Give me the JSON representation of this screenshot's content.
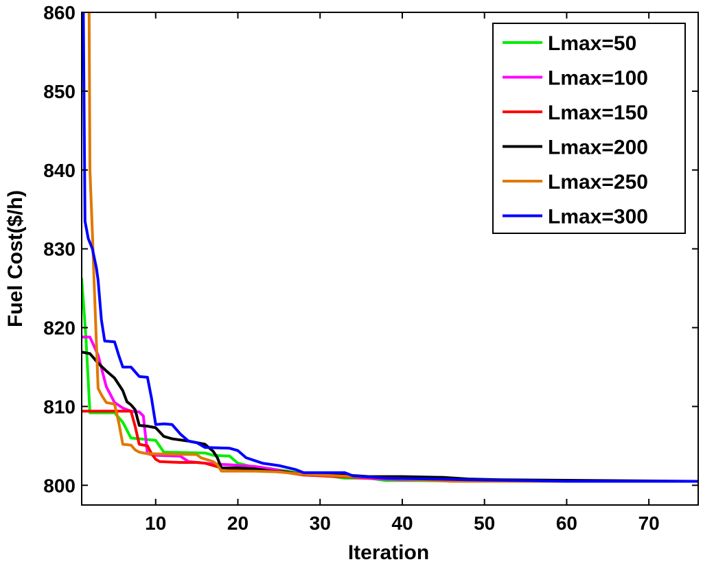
{
  "chart_data": {
    "type": "line",
    "title": "",
    "xlabel": "Iteration",
    "ylabel": "Fuel Cost($/h)",
    "xlim": [
      1,
      76
    ],
    "ylim": [
      797.5,
      860
    ],
    "x_ticks": [
      10,
      20,
      30,
      40,
      50,
      60,
      70
    ],
    "y_ticks": [
      800,
      810,
      820,
      830,
      840,
      850,
      860
    ],
    "grid": false,
    "legend_position": "top-right",
    "series": [
      {
        "name": "Lmax=50",
        "color": "#00ee00",
        "points": [
          [
            1,
            826.2
          ],
          [
            1.5,
            819
          ],
          [
            2,
            809.2
          ],
          [
            5,
            809.2
          ],
          [
            6,
            808
          ],
          [
            7,
            806
          ],
          [
            8,
            805.9
          ],
          [
            9,
            805.8
          ],
          [
            10,
            805.7
          ],
          [
            11,
            804.2
          ],
          [
            16,
            804.1
          ],
          [
            17,
            803.8
          ],
          [
            19,
            803.7
          ],
          [
            20,
            802.8
          ],
          [
            22,
            802.3
          ],
          [
            24,
            802.1
          ],
          [
            26,
            801.8
          ],
          [
            28,
            801.4
          ],
          [
            31,
            801.2
          ],
          [
            33,
            800.9
          ],
          [
            36,
            800.9
          ],
          [
            38,
            800.6
          ],
          [
            42,
            800.6
          ],
          [
            50,
            800.5
          ],
          [
            76,
            800.5
          ]
        ]
      },
      {
        "name": "Lmax=100",
        "color": "#ff00ff",
        "points": [
          [
            1,
            818.8
          ],
          [
            2,
            818.8
          ],
          [
            3,
            816.5
          ],
          [
            4,
            812.5
          ],
          [
            5,
            810.5
          ],
          [
            6,
            809.8
          ],
          [
            7,
            809.4
          ],
          [
            8,
            809.3
          ],
          [
            8.5,
            808.8
          ],
          [
            9,
            804
          ],
          [
            10,
            803.8
          ],
          [
            13,
            803.7
          ],
          [
            14,
            803
          ],
          [
            17,
            802.7
          ],
          [
            19,
            802.6
          ],
          [
            22,
            802.4
          ],
          [
            24,
            802.1
          ],
          [
            26,
            801.7
          ],
          [
            28,
            801.3
          ],
          [
            33,
            801.1
          ],
          [
            35,
            800.9
          ],
          [
            40,
            800.7
          ],
          [
            47,
            800.6
          ],
          [
            52,
            800.5
          ],
          [
            76,
            800.5
          ]
        ]
      },
      {
        "name": "Lmax=150",
        "color": "#ff0000",
        "points": [
          [
            1,
            809.4
          ],
          [
            6,
            809.4
          ],
          [
            7,
            809.4
          ],
          [
            7.5,
            807.5
          ],
          [
            8,
            805.2
          ],
          [
            9,
            805
          ],
          [
            9.5,
            804
          ],
          [
            10,
            803.3
          ],
          [
            10.5,
            803
          ],
          [
            13,
            802.9
          ],
          [
            15,
            802.9
          ],
          [
            16,
            802.8
          ],
          [
            18,
            802.2
          ],
          [
            20,
            802.1
          ],
          [
            22,
            802
          ],
          [
            24,
            801.8
          ],
          [
            26,
            801.6
          ],
          [
            28,
            801.3
          ],
          [
            32,
            801.1
          ],
          [
            35,
            801
          ],
          [
            40,
            800.8
          ],
          [
            48,
            800.7
          ],
          [
            55,
            800.6
          ],
          [
            61,
            800.6
          ],
          [
            62,
            800.5
          ],
          [
            76,
            800.5
          ]
        ]
      },
      {
        "name": "Lmax=200",
        "color": "#000000",
        "points": [
          [
            1,
            816.9
          ],
          [
            2,
            816.7
          ],
          [
            3,
            815.5
          ],
          [
            4,
            814.5
          ],
          [
            5,
            813.6
          ],
          [
            6,
            812
          ],
          [
            6.5,
            810.6
          ],
          [
            7,
            810.2
          ],
          [
            7.5,
            809.6
          ],
          [
            8,
            807.6
          ],
          [
            9,
            807.5
          ],
          [
            10,
            807.3
          ],
          [
            11,
            806.2
          ],
          [
            12,
            805.9
          ],
          [
            14,
            805.6
          ],
          [
            16,
            805.2
          ],
          [
            17,
            804.3
          ],
          [
            17.5,
            803.5
          ],
          [
            18,
            802.2
          ],
          [
            20,
            802.2
          ],
          [
            22,
            802.1
          ],
          [
            24,
            801.8
          ],
          [
            26,
            801.7
          ],
          [
            28,
            801.4
          ],
          [
            33,
            801.3
          ],
          [
            36,
            801.1
          ],
          [
            40,
            801.1
          ],
          [
            45,
            801
          ],
          [
            48,
            800.8
          ],
          [
            52,
            800.7
          ],
          [
            76,
            800.5
          ]
        ]
      },
      {
        "name": "Lmax=250",
        "color": "#e07800",
        "points": [
          [
            1.9,
            860
          ],
          [
            2,
            840
          ],
          [
            2.3,
            832
          ],
          [
            2.5,
            826
          ],
          [
            3,
            812.3
          ],
          [
            3.5,
            811.3
          ],
          [
            4,
            810.5
          ],
          [
            5,
            810.3
          ],
          [
            5.5,
            808
          ],
          [
            6,
            805.2
          ],
          [
            7,
            805.1
          ],
          [
            7.5,
            804.5
          ],
          [
            8,
            804.2
          ],
          [
            9,
            804
          ],
          [
            15,
            803.9
          ],
          [
            15.5,
            803.5
          ],
          [
            17,
            803
          ],
          [
            17.5,
            802.6
          ],
          [
            18,
            801.8
          ],
          [
            22,
            801.8
          ],
          [
            25,
            801.7
          ],
          [
            28,
            801.4
          ],
          [
            32,
            801.2
          ],
          [
            36,
            801
          ],
          [
            42,
            800.7
          ],
          [
            46,
            800.5
          ],
          [
            76,
            800.5
          ]
        ]
      },
      {
        "name": "Lmax=300",
        "color": "#0000ff",
        "points": [
          [
            1.2,
            860
          ],
          [
            1.4,
            833.5
          ],
          [
            1.8,
            831.3
          ],
          [
            2.3,
            830
          ],
          [
            2.8,
            827.5
          ],
          [
            3,
            826
          ],
          [
            3.4,
            821
          ],
          [
            3.8,
            818.3
          ],
          [
            5,
            818.2
          ],
          [
            5.5,
            816.5
          ],
          [
            6,
            815
          ],
          [
            7,
            815
          ],
          [
            8,
            813.8
          ],
          [
            9,
            813.7
          ],
          [
            9.5,
            811
          ],
          [
            10,
            807.7
          ],
          [
            11,
            807.8
          ],
          [
            12,
            807.7
          ],
          [
            13,
            806.5
          ],
          [
            14,
            805.6
          ],
          [
            15,
            805.4
          ],
          [
            16,
            804.8
          ],
          [
            19,
            804.7
          ],
          [
            20,
            804.4
          ],
          [
            21,
            803.5
          ],
          [
            23,
            802.8
          ],
          [
            25,
            802.5
          ],
          [
            27,
            802
          ],
          [
            28,
            801.6
          ],
          [
            33,
            801.6
          ],
          [
            34,
            801.2
          ],
          [
            38,
            800.9
          ],
          [
            48,
            800.7
          ],
          [
            55,
            800.6
          ],
          [
            60,
            800.5
          ],
          [
            76,
            800.5
          ]
        ]
      }
    ]
  }
}
